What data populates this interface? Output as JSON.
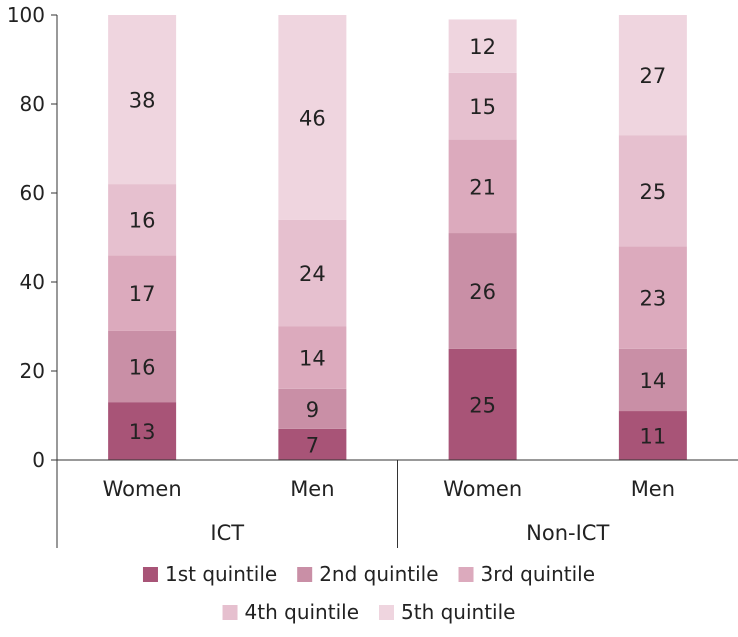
{
  "chart_data": {
    "type": "bar",
    "stacked": true,
    "ylim": [
      0,
      100
    ],
    "yticks": [
      "0",
      "20",
      "40",
      "60",
      "80",
      "100"
    ],
    "groups": [
      {
        "label": "ICT",
        "categories": [
          "Women",
          "Men"
        ]
      },
      {
        "label": "Non-ICT",
        "categories": [
          "Women",
          "Men"
        ]
      }
    ],
    "series": [
      {
        "name": "1st quintile",
        "color": "#a85477",
        "values": [
          13,
          7,
          25,
          11
        ]
      },
      {
        "name": "2nd quintile",
        "color": "#c98fa6",
        "values": [
          16,
          9,
          26,
          14
        ]
      },
      {
        "name": "3rd quintile",
        "color": "#dcaabd",
        "values": [
          17,
          14,
          21,
          23
        ]
      },
      {
        "name": "4th quintile",
        "color": "#e6c0cf",
        "values": [
          16,
          24,
          15,
          25
        ]
      },
      {
        "name": "5th quintile",
        "color": "#efd5df",
        "values": [
          38,
          46,
          12,
          27
        ]
      }
    ],
    "legend_position": "bottom"
  }
}
